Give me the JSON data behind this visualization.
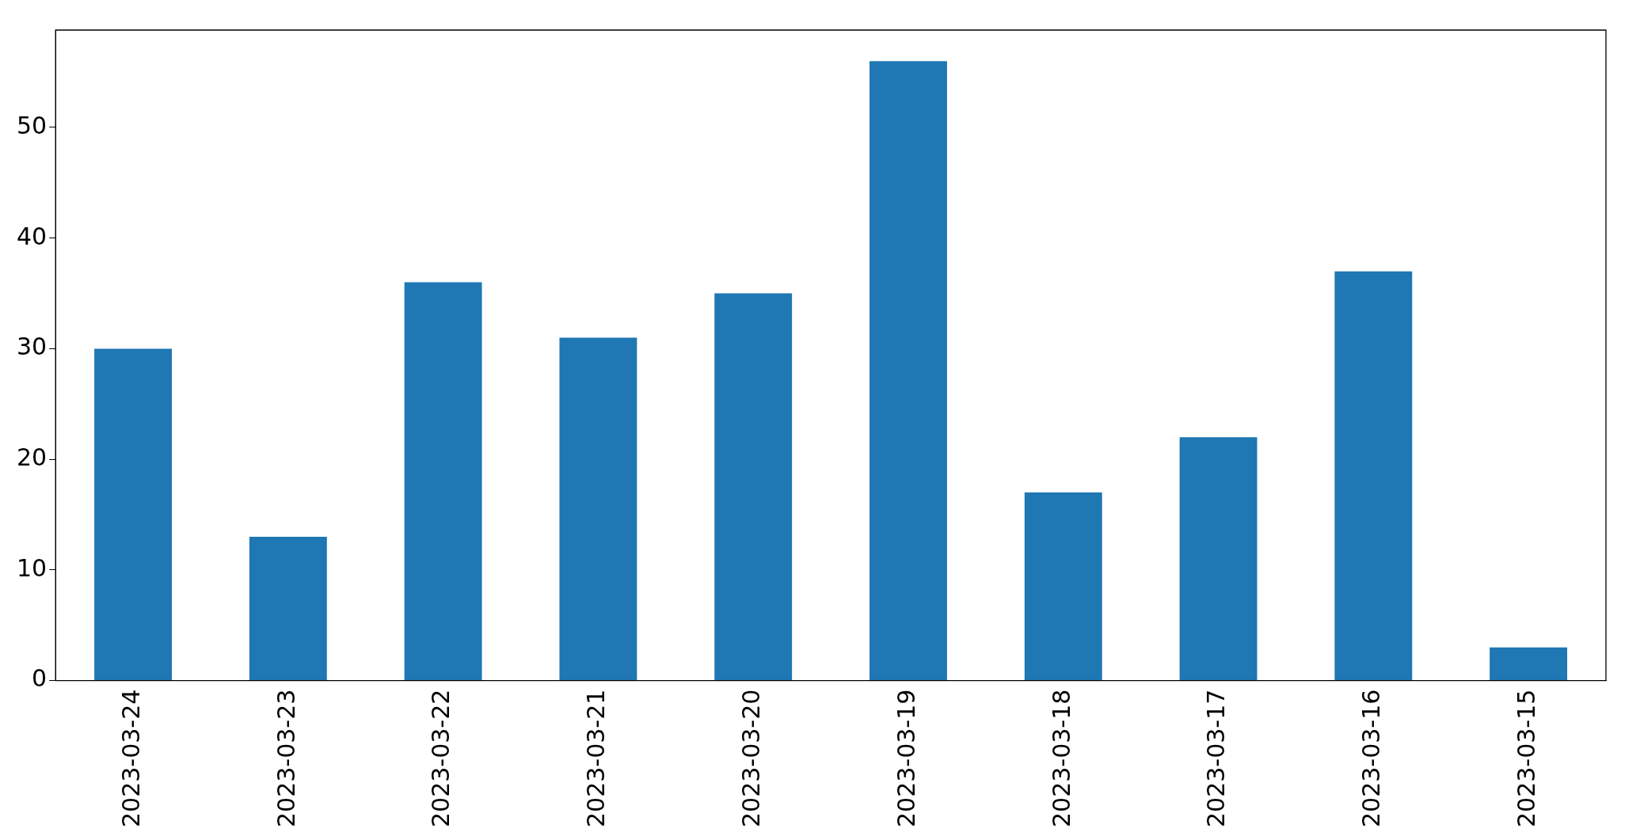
{
  "chart_data": {
    "type": "bar",
    "categories": [
      "2023-03-24",
      "2023-03-23",
      "2023-03-22",
      "2023-03-21",
      "2023-03-20",
      "2023-03-19",
      "2023-03-18",
      "2023-03-17",
      "2023-03-16",
      "2023-03-15"
    ],
    "values": [
      30,
      13,
      36,
      31,
      35,
      56,
      17,
      22,
      37,
      3
    ],
    "color": "#1f77b4",
    "ylim": [
      0,
      58.8
    ],
    "yticks": [
      0,
      10,
      20,
      30,
      40,
      50
    ],
    "grid": false,
    "legend": false
  }
}
